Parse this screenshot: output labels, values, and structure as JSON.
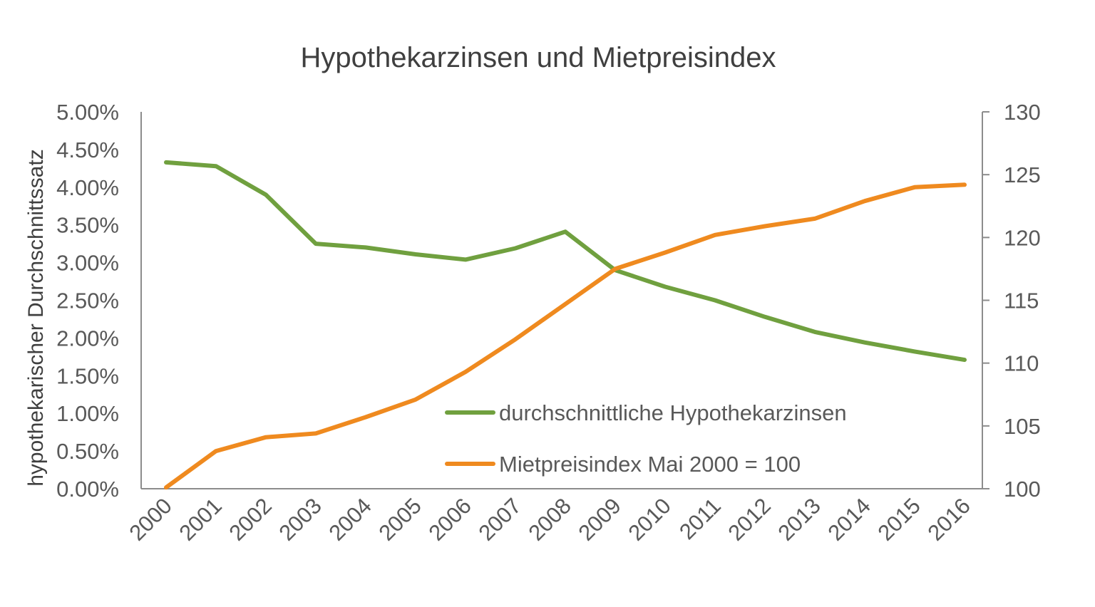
{
  "chart_data": {
    "type": "line",
    "title": "Hypothekarzinsen und Mietpreisindex",
    "ylabel": "hypothekarischer Durchschnittssatz",
    "y2label": "",
    "xlabel": "",
    "categories": [
      "2000",
      "2001",
      "2002",
      "2003",
      "2004",
      "2005",
      "2006",
      "2007",
      "2008",
      "2009",
      "2010",
      "2011",
      "2012",
      "2013",
      "2014",
      "2015",
      "2016"
    ],
    "ylim": [
      0,
      5
    ],
    "y2lim": [
      100,
      130
    ],
    "yticks": [
      "0.00%",
      "0.50%",
      "1.00%",
      "1.50%",
      "2.00%",
      "2.50%",
      "3.00%",
      "3.50%",
      "4.00%",
      "4.50%",
      "5.00%"
    ],
    "y2ticks": [
      "100",
      "105",
      "110",
      "115",
      "120",
      "125",
      "130"
    ],
    "grid": false,
    "legend_position": "lower-middle",
    "series": [
      {
        "name": "durchschnittliche Hypothekarzinsen",
        "axis": "left",
        "color": "#70a03f",
        "values": [
          4.33,
          4.28,
          3.9,
          3.25,
          3.2,
          3.11,
          3.04,
          3.19,
          3.41,
          2.9,
          2.68,
          2.5,
          2.28,
          2.08,
          1.94,
          1.82,
          1.71
        ]
      },
      {
        "name": "Mietpreisindex Mai 2000 = 100",
        "axis": "right",
        "color": "#ef8a1f",
        "values": [
          100.1,
          103.0,
          104.1,
          104.4,
          105.7,
          107.1,
          109.3,
          111.9,
          114.7,
          117.5,
          118.8,
          120.2,
          120.9,
          121.5,
          122.9,
          124.0,
          124.2
        ]
      }
    ]
  }
}
